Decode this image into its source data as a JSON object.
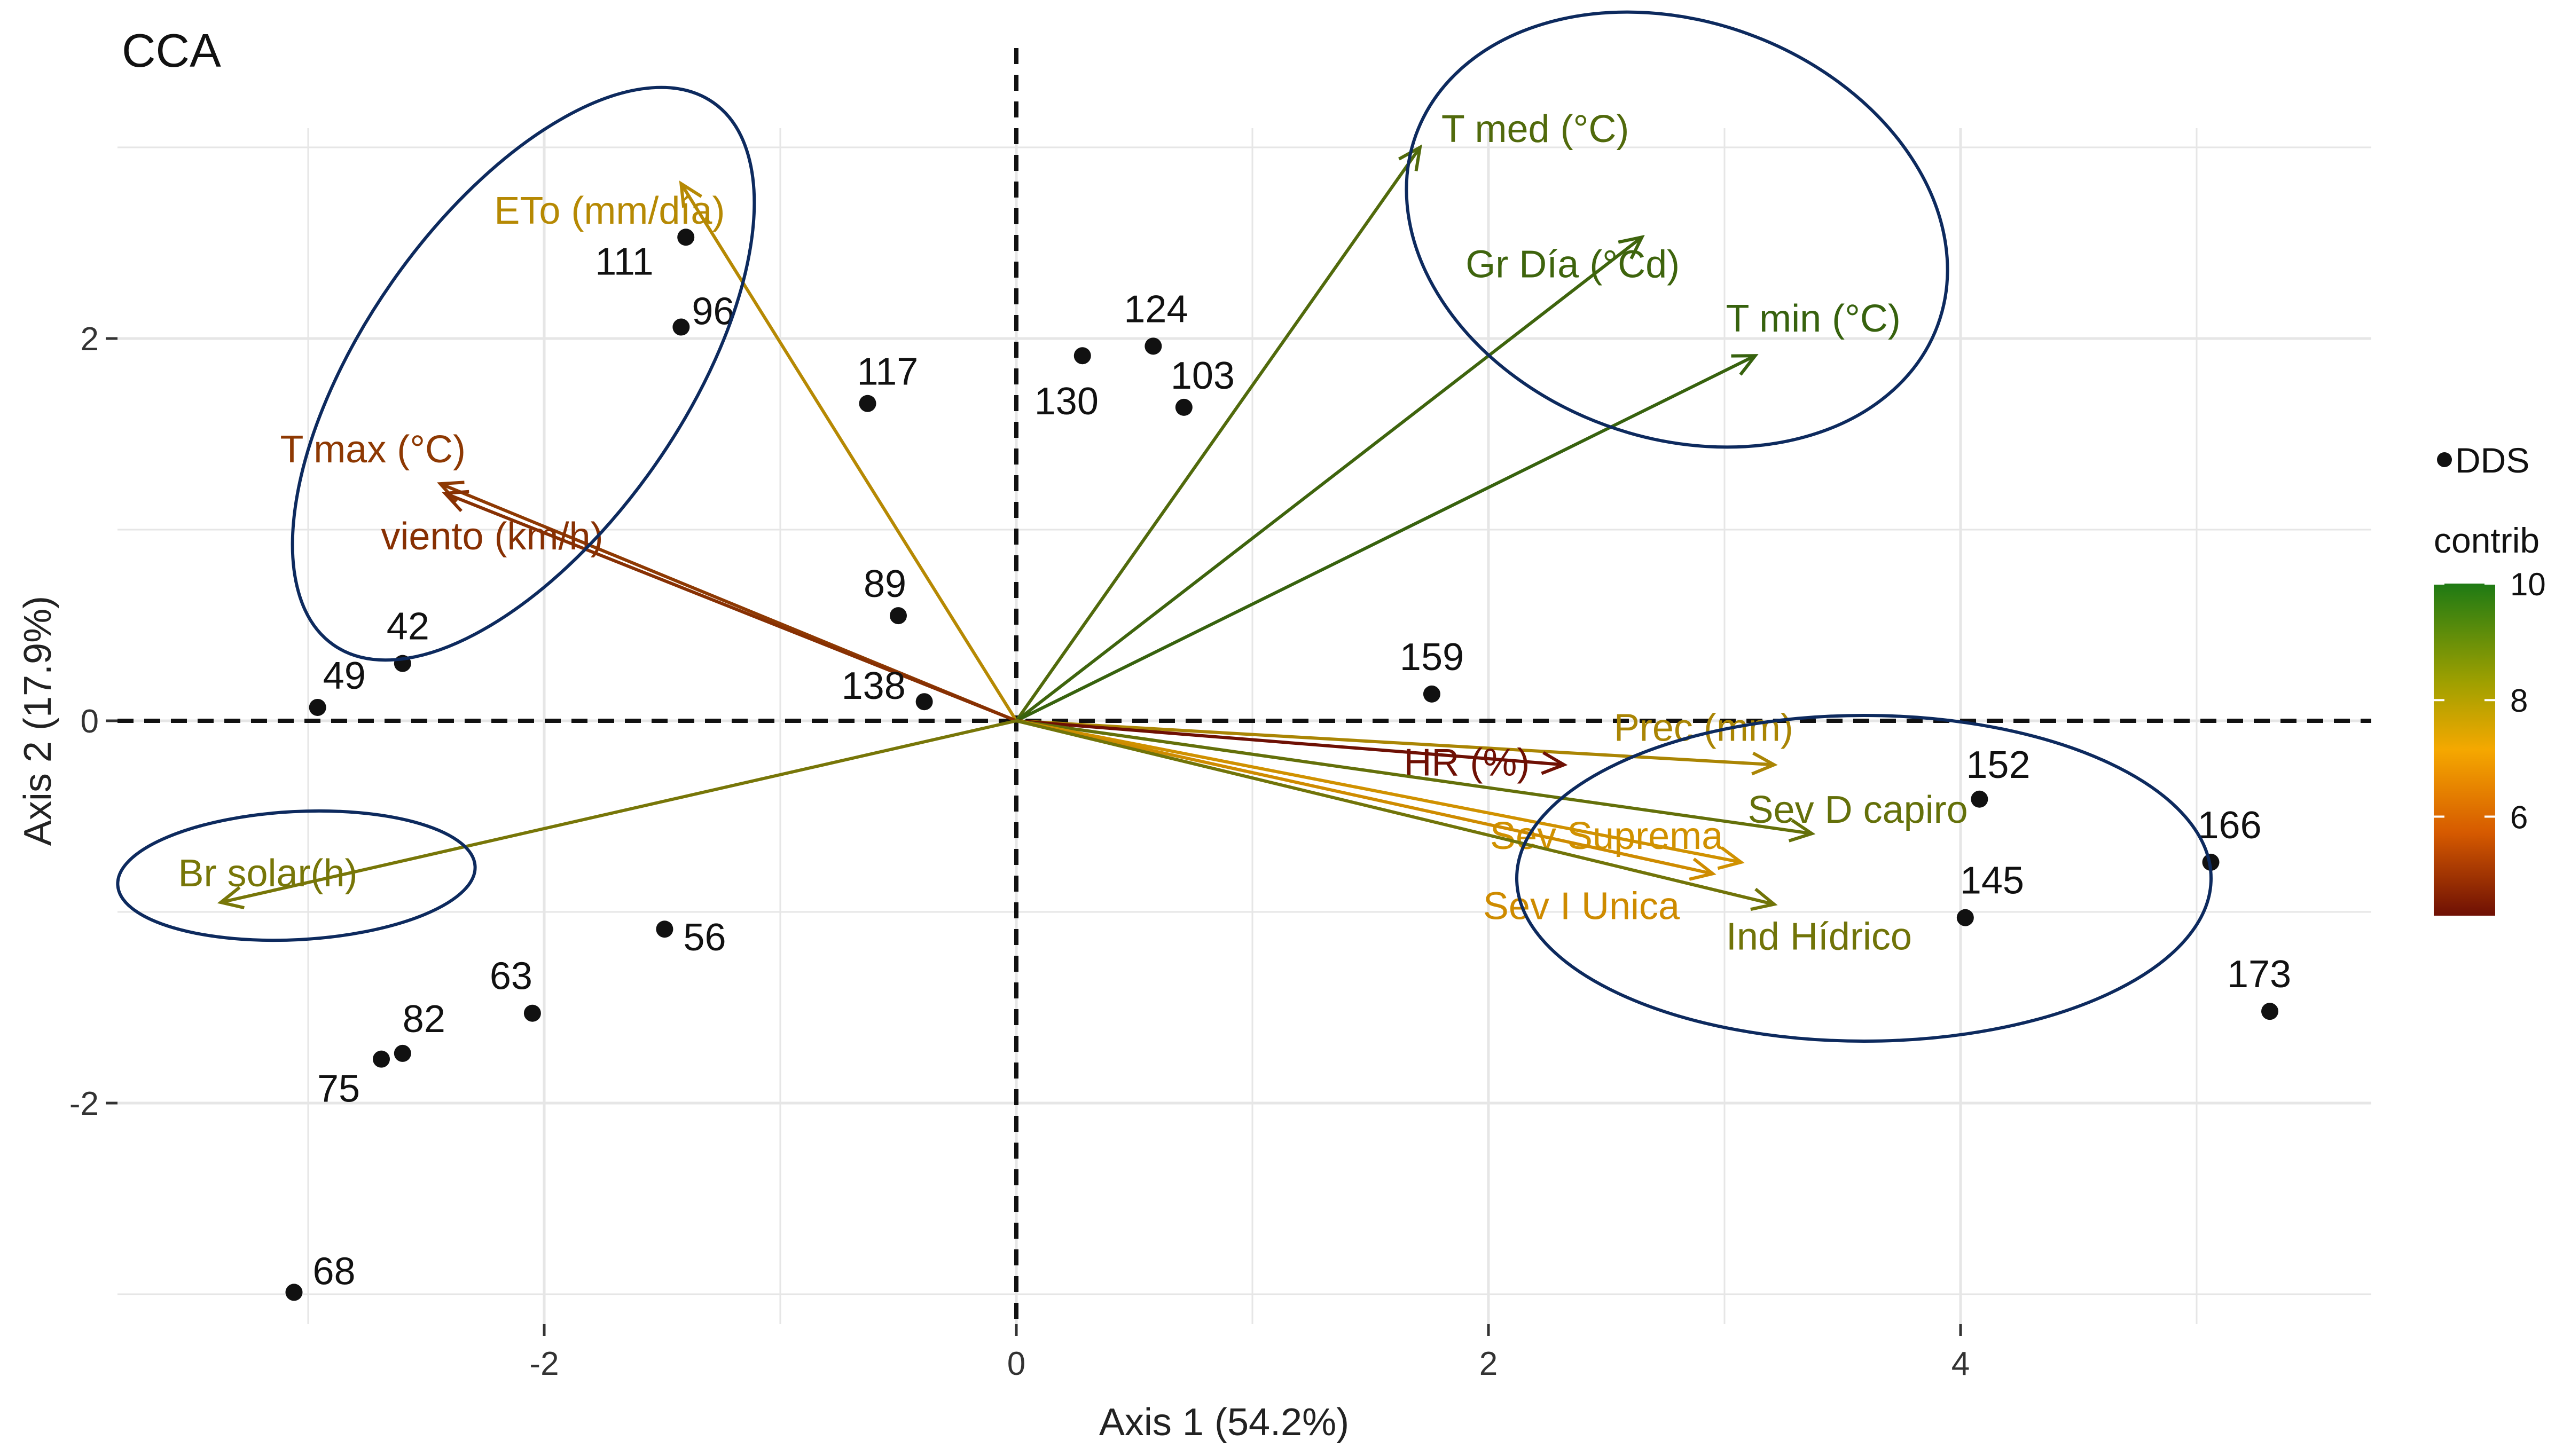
{
  "chart_data": {
    "type": "scatter",
    "title": "CCA",
    "xlabel": "Axis 1 (54.2%)",
    "ylabel": "Axis 2 (17.9%)",
    "xlim": [
      -3.9,
      5.75
    ],
    "ylim": [
      -3.15,
      3.7
    ],
    "xticks": [
      -2,
      0,
      2,
      4
    ],
    "yticks": [
      -2,
      0,
      2
    ],
    "xtick_labels": [
      "-2",
      "0",
      "2",
      "4"
    ],
    "ytick_labels": [
      "-2",
      "0",
      "2"
    ],
    "grid": true,
    "points": [
      {
        "label": "111",
        "x": -1.4,
        "y": 2.53
      },
      {
        "label": "96",
        "x": -1.42,
        "y": 2.06
      },
      {
        "label": "117",
        "x": -0.63,
        "y": 1.66
      },
      {
        "label": "124",
        "x": 0.58,
        "y": 1.96
      },
      {
        "label": "130",
        "x": 0.28,
        "y": 1.91
      },
      {
        "label": "103",
        "x": 0.71,
        "y": 1.64
      },
      {
        "label": "89",
        "x": -0.5,
        "y": 0.55
      },
      {
        "label": "138",
        "x": -0.39,
        "y": 0.1
      },
      {
        "label": "42",
        "x": -2.6,
        "y": 0.3
      },
      {
        "label": "49",
        "x": -2.96,
        "y": 0.07
      },
      {
        "label": "159",
        "x": 1.76,
        "y": 0.14
      },
      {
        "label": "152",
        "x": 4.08,
        "y": -0.41
      },
      {
        "label": "166",
        "x": 5.06,
        "y": -0.74
      },
      {
        "label": "145",
        "x": 4.02,
        "y": -1.03
      },
      {
        "label": "173",
        "x": 5.31,
        "y": -1.52
      },
      {
        "label": "56",
        "x": -1.49,
        "y": -1.09
      },
      {
        "label": "63",
        "x": -2.05,
        "y": -1.53
      },
      {
        "label": "82",
        "x": -2.6,
        "y": -1.74
      },
      {
        "label": "75",
        "x": -2.69,
        "y": -1.77
      },
      {
        "label": "68",
        "x": -3.06,
        "y": -2.99
      }
    ],
    "vectors": [
      {
        "label": "ETo (mm/día)",
        "x": -1.42,
        "y": 2.81,
        "contrib": 7.6
      },
      {
        "label": "T max (°C)",
        "x": -2.44,
        "y": 1.24,
        "contrib": 5.2
      },
      {
        "label": "viento (km/h)",
        "x": -2.42,
        "y": 1.19,
        "contrib": 5.0
      },
      {
        "label": "T med (°C)",
        "x": 1.71,
        "y": 3.0,
        "contrib": 9.2
      },
      {
        "label": "Gr Día (°Cd)",
        "x": 2.65,
        "y": 2.53,
        "contrib": 9.5
      },
      {
        "label": "T min (°C)",
        "x": 3.13,
        "y": 1.91,
        "contrib": 9.6
      },
      {
        "label": "Prec (mm)",
        "x": 3.21,
        "y": -0.23,
        "contrib": 7.8
      },
      {
        "label": "HR (%)",
        "x": 2.32,
        "y": -0.23,
        "contrib": 4.2
      },
      {
        "label": "Sev D capiro",
        "x": 3.37,
        "y": -0.59,
        "contrib": 8.9
      },
      {
        "label": "Sev Suprema",
        "x": 3.07,
        "y": -0.74,
        "contrib": 7.2
      },
      {
        "label": "Sev I Unica",
        "x": 2.95,
        "y": -0.8,
        "contrib": 7.0
      },
      {
        "label": "Ind Hídrico",
        "x": 3.21,
        "y": -0.96,
        "contrib": 8.7
      },
      {
        "label": "Br solar(h)",
        "x": -3.37,
        "y": -0.95,
        "contrib": 8.6
      }
    ],
    "legend": {
      "points_label": "DDS",
      "color_title": "contrib",
      "color_ticks": [
        "10",
        "8",
        "6"
      ],
      "color_range": [
        4.3,
        10
      ],
      "placement": "right"
    },
    "colors": {
      "low": "#7a1a05",
      "mid": "#f5a800",
      "high": "#1f7a12",
      "ellipse": "#0d2a5e"
    }
  }
}
